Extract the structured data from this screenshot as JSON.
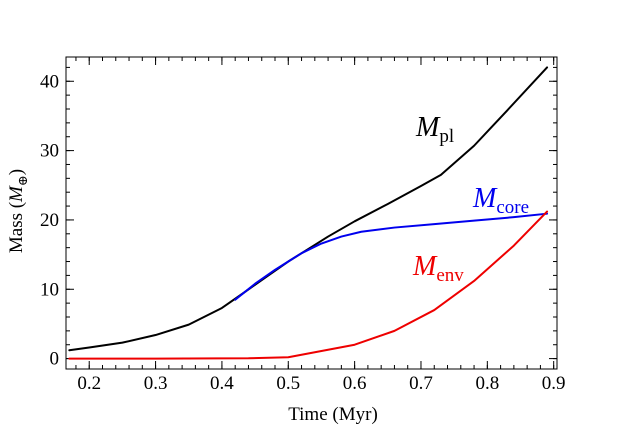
{
  "chart_data": {
    "type": "line",
    "xlabel": "Time (Myr)",
    "ylabel": {
      "text": "Mass (",
      "symbol": "M",
      "subscript": "⊕",
      "close": ")"
    },
    "xlim": [
      0.165,
      0.905
    ],
    "ylim": [
      -1.5,
      43.5
    ],
    "x_ticks": [
      0.2,
      0.3,
      0.4,
      0.5,
      0.6,
      0.7,
      0.8,
      0.9
    ],
    "y_ticks": [
      0,
      10,
      20,
      30,
      40
    ],
    "x_minor_step": 0.02,
    "y_minor_step": 2,
    "grid": false,
    "series": [
      {
        "name": "pl",
        "symbol": "M",
        "color": "#000000",
        "x": [
          0.17,
          0.2,
          0.25,
          0.3,
          0.35,
          0.4,
          0.43,
          0.47,
          0.5,
          0.53,
          0.56,
          0.6,
          0.65,
          0.7,
          0.73,
          0.78,
          0.83,
          0.89
        ],
        "y": [
          1.2,
          1.6,
          2.3,
          3.4,
          4.9,
          7.3,
          9.3,
          12.0,
          14.0,
          15.8,
          17.6,
          19.8,
          22.3,
          24.9,
          26.5,
          30.7,
          35.8,
          42.0
        ]
      },
      {
        "name": "core",
        "symbol": "M",
        "color": "#0000ee",
        "x": [
          0.42,
          0.45,
          0.48,
          0.5,
          0.52,
          0.55,
          0.58,
          0.61,
          0.66,
          0.72,
          0.78,
          0.84,
          0.89
        ],
        "y": [
          8.5,
          10.8,
          12.8,
          14.0,
          15.2,
          16.6,
          17.6,
          18.3,
          18.9,
          19.4,
          19.9,
          20.4,
          20.9
        ]
      },
      {
        "name": "env",
        "symbol": "M",
        "color": "#ee0000",
        "x": [
          0.17,
          0.3,
          0.44,
          0.5,
          0.55,
          0.6,
          0.66,
          0.72,
          0.78,
          0.84,
          0.89
        ],
        "y": [
          0.0,
          0.0,
          0.05,
          0.2,
          1.1,
          2.0,
          4.0,
          7.0,
          11.2,
          16.3,
          21.2
        ]
      }
    ]
  }
}
